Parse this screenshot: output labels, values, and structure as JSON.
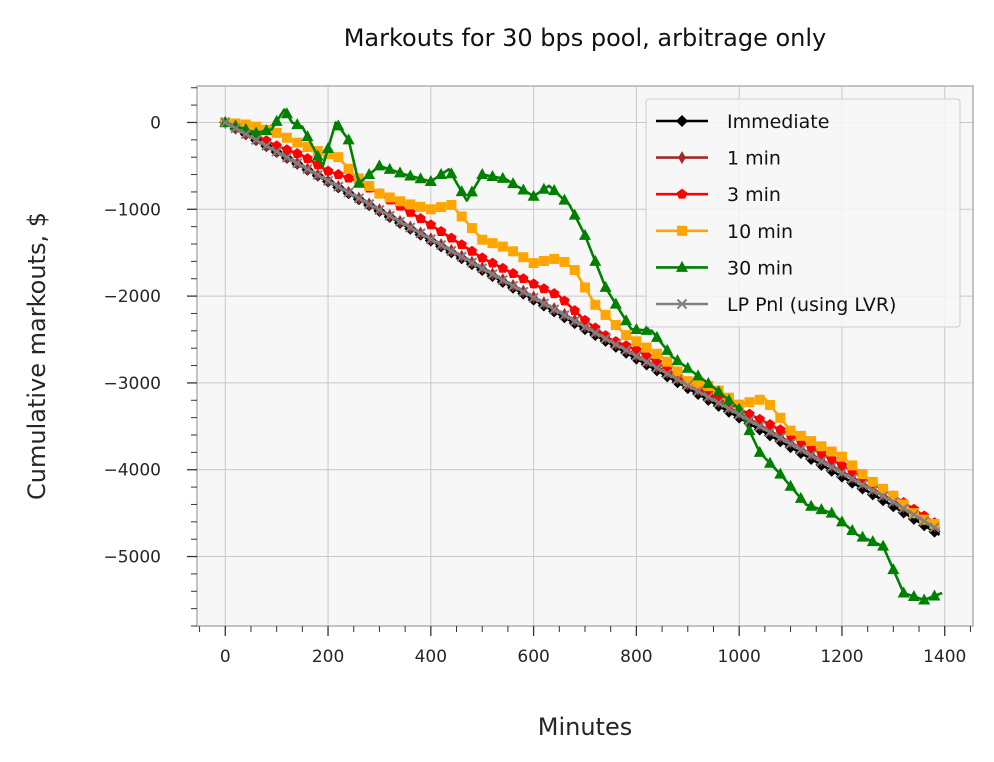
{
  "chart_data": {
    "type": "line",
    "title": "Markouts for 30 bps pool, arbitrage only",
    "xlabel": "Minutes",
    "ylabel": "Cumulative markouts, $",
    "xlim": [
      -55,
      1455
    ],
    "ylim": [
      -5800,
      420
    ],
    "xticks": [
      0,
      200,
      400,
      600,
      800,
      1000,
      1200,
      1400
    ],
    "yticks": [
      0,
      -1000,
      -2000,
      -3000,
      -4000,
      -5000
    ],
    "xtick_labels": [
      "0",
      "200",
      "400",
      "600",
      "800",
      "1000",
      "1200",
      "1400"
    ],
    "ytick_labels": [
      "0",
      "−1000",
      "−2000",
      "−3000",
      "−4000",
      "−5000"
    ],
    "grid": true,
    "legend_position": "top-right",
    "series": [
      {
        "name": "Immediate",
        "color": "#000000",
        "marker": "diamond",
        "x": [
          0,
          100,
          200,
          300,
          400,
          500,
          600,
          700,
          800,
          900,
          1000,
          1100,
          1200,
          1300,
          1390
        ],
        "y": [
          0,
          -340,
          -680,
          -1020,
          -1360,
          -1700,
          -2040,
          -2380,
          -2720,
          -3060,
          -3400,
          -3740,
          -4080,
          -4420,
          -4750
        ]
      },
      {
        "name": "1 min",
        "color": "#a52a2a",
        "marker": "thin-diamond",
        "x": [
          0,
          100,
          200,
          300,
          400,
          500,
          600,
          700,
          800,
          900,
          1000,
          1100,
          1200,
          1300,
          1390
        ],
        "y": [
          0,
          -335,
          -670,
          -1005,
          -1340,
          -1675,
          -2010,
          -2345,
          -2680,
          -3015,
          -3350,
          -3685,
          -4020,
          -4355,
          -4680
        ]
      },
      {
        "name": "3 min",
        "color": "#ff0000",
        "marker": "pentagon",
        "x": [
          0,
          50,
          100,
          150,
          200,
          250,
          300,
          400,
          500,
          600,
          650,
          700,
          750,
          800,
          850,
          900,
          1000,
          1100,
          1200,
          1300,
          1390
        ],
        "y": [
          0,
          -120,
          -270,
          -380,
          -560,
          -660,
          -820,
          -1180,
          -1560,
          -1860,
          -2000,
          -2280,
          -2500,
          -2620,
          -2800,
          -3000,
          -3300,
          -3600,
          -3950,
          -4300,
          -4650
        ]
      },
      {
        "name": "10 min",
        "color": "#ffa500",
        "marker": "square",
        "x": [
          0,
          50,
          100,
          150,
          180,
          220,
          250,
          300,
          350,
          400,
          440,
          500,
          550,
          600,
          650,
          680,
          720,
          780,
          850,
          900,
          950,
          1000,
          1050,
          1100,
          1150,
          1200,
          1250,
          1300,
          1350,
          1390
        ],
        "y": [
          0,
          -30,
          -120,
          -260,
          -330,
          -400,
          -600,
          -820,
          -930,
          -1000,
          -950,
          -1350,
          -1450,
          -1620,
          -1560,
          -1700,
          -2100,
          -2450,
          -2700,
          -2980,
          -3050,
          -3250,
          -3180,
          -3550,
          -3700,
          -3850,
          -4100,
          -4300,
          -4550,
          -4650
        ]
      },
      {
        "name": "30 min",
        "color": "#008000",
        "marker": "triangle",
        "x": [
          0,
          60,
          90,
          115,
          130,
          150,
          190,
          215,
          240,
          260,
          300,
          350,
          400,
          435,
          470,
          500,
          545,
          600,
          630,
          670,
          700,
          740,
          790,
          830,
          870,
          950,
          1000,
          1040,
          1080,
          1130,
          1180,
          1230,
          1280,
          1320,
          1360,
          1395
        ],
        "y": [
          0,
          -120,
          -80,
          150,
          0,
          -50,
          -500,
          0,
          -200,
          -700,
          -500,
          -600,
          -680,
          -540,
          -900,
          -600,
          -650,
          -850,
          -730,
          -950,
          -1300,
          -1900,
          -2380,
          -2400,
          -2700,
          -3050,
          -3300,
          -3800,
          -4050,
          -4400,
          -4500,
          -4750,
          -4880,
          -5420,
          -5500,
          -5420
        ]
      },
      {
        "name": "LP Pnl (using LVR)",
        "color": "#808080",
        "marker": "x",
        "x": [
          0,
          100,
          200,
          300,
          400,
          500,
          600,
          700,
          800,
          900,
          1000,
          1100,
          1200,
          1300,
          1390
        ],
        "y": [
          0,
          -335,
          -672,
          -1008,
          -1345,
          -1680,
          -2018,
          -2355,
          -2690,
          -3028,
          -3364,
          -3700,
          -4036,
          -4372,
          -4700
        ]
      }
    ]
  }
}
